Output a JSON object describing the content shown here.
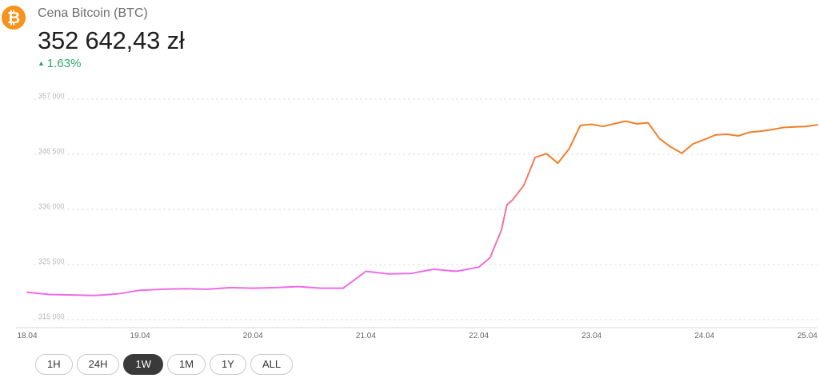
{
  "header": {
    "coin_symbol": "₿",
    "title": "Cena Bitcoin (BTC)",
    "price": "352 642,43 zł",
    "change_arrow": "▲",
    "change": "1.63%",
    "change_color": "#2fa36b",
    "accent_color": "#f7931a"
  },
  "range_buttons": [
    {
      "label": "1H",
      "active": false
    },
    {
      "label": "24H",
      "active": false
    },
    {
      "label": "1W",
      "active": true
    },
    {
      "label": "1M",
      "active": false
    },
    {
      "label": "1Y",
      "active": false
    },
    {
      "label": "ALL",
      "active": false
    }
  ],
  "chart_data": {
    "type": "line",
    "title": "",
    "xlabel": "",
    "ylabel": "",
    "x_tick_labels": [
      "18.04",
      "19.04",
      "20.04",
      "21.04",
      "22.04",
      "23.04",
      "24.04",
      "25.04"
    ],
    "y_tick_labels": [
      "315 000",
      "325 500",
      "336 000",
      "346 500",
      "357 000"
    ],
    "y_tick_values": [
      315000,
      325500,
      336000,
      346500,
      357000
    ],
    "xlim": [
      0,
      7
    ],
    "ylim": [
      315000,
      357000
    ],
    "grid": "horizontal-dashed",
    "colors": {
      "start": "#f06be8",
      "end": "#f07f2c"
    },
    "x": [
      0,
      0.2,
      0.4,
      0.6,
      0.8,
      1.0,
      1.2,
      1.4,
      1.6,
      1.8,
      2.0,
      2.2,
      2.4,
      2.6,
      2.8,
      3.0,
      3.2,
      3.4,
      3.6,
      3.8,
      4.0,
      4.1,
      4.2,
      4.25,
      4.3,
      4.4,
      4.5,
      4.6,
      4.7,
      4.8,
      4.9,
      5.0,
      5.1,
      5.2,
      5.3,
      5.4,
      5.5,
      5.6,
      5.7,
      5.8,
      5.9,
      6.0,
      6.1,
      6.2,
      6.3,
      6.4,
      6.5,
      6.6,
      6.7,
      6.8,
      6.9,
      7.0
    ],
    "y": [
      320200,
      319800,
      319700,
      319600,
      319900,
      320600,
      320800,
      320900,
      320800,
      321100,
      321000,
      321100,
      321300,
      321000,
      321000,
      324200,
      323700,
      323800,
      324600,
      324200,
      325000,
      326800,
      332000,
      336900,
      337800,
      340600,
      345900,
      346600,
      344800,
      347500,
      352000,
      352200,
      351800,
      352300,
      352800,
      352300,
      352500,
      349500,
      347900,
      346700,
      348500,
      349300,
      350200,
      350300,
      350000,
      350700,
      350900,
      351200,
      351600,
      351700,
      351800,
      352100
    ]
  }
}
